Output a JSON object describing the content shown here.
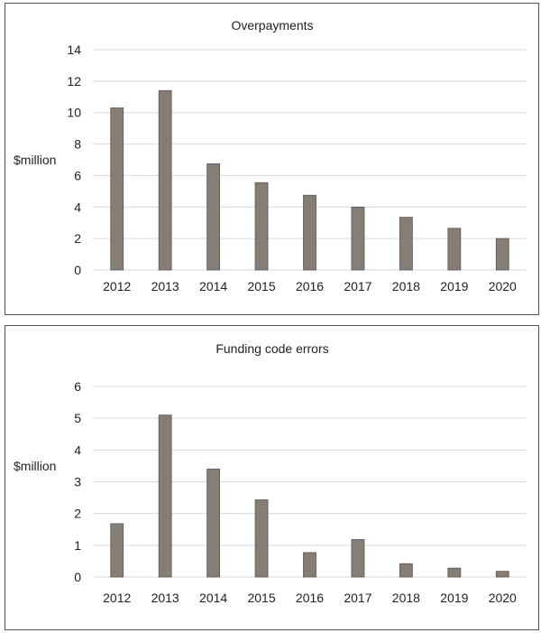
{
  "chart_data": [
    {
      "type": "bar",
      "title": "Overpayments",
      "ylabel": "$million",
      "xlabel": "",
      "categories": [
        "2012",
        "2013",
        "2014",
        "2015",
        "2016",
        "2017",
        "2018",
        "2019",
        "2020"
      ],
      "values": [
        10.3,
        11.4,
        6.75,
        5.55,
        4.75,
        4.0,
        3.35,
        2.65,
        2.0
      ],
      "yticks": [
        "0",
        "2",
        "4",
        "6",
        "8",
        "10",
        "12",
        "14"
      ],
      "ylim": [
        0,
        14
      ],
      "grid": true,
      "bar_color": "#857e77"
    },
    {
      "type": "bar",
      "title": "Funding code errors",
      "ylabel": "$million",
      "xlabel": "",
      "categories": [
        "2012",
        "2013",
        "2014",
        "2015",
        "2016",
        "2017",
        "2018",
        "2019",
        "2020"
      ],
      "values": [
        1.68,
        5.1,
        3.4,
        2.43,
        0.77,
        1.18,
        0.42,
        0.28,
        0.18
      ],
      "yticks": [
        "0",
        "1",
        "2",
        "3",
        "4",
        "5",
        "6"
      ],
      "ylim": [
        0,
        6
      ],
      "grid": true,
      "bar_color": "#857e77"
    }
  ]
}
